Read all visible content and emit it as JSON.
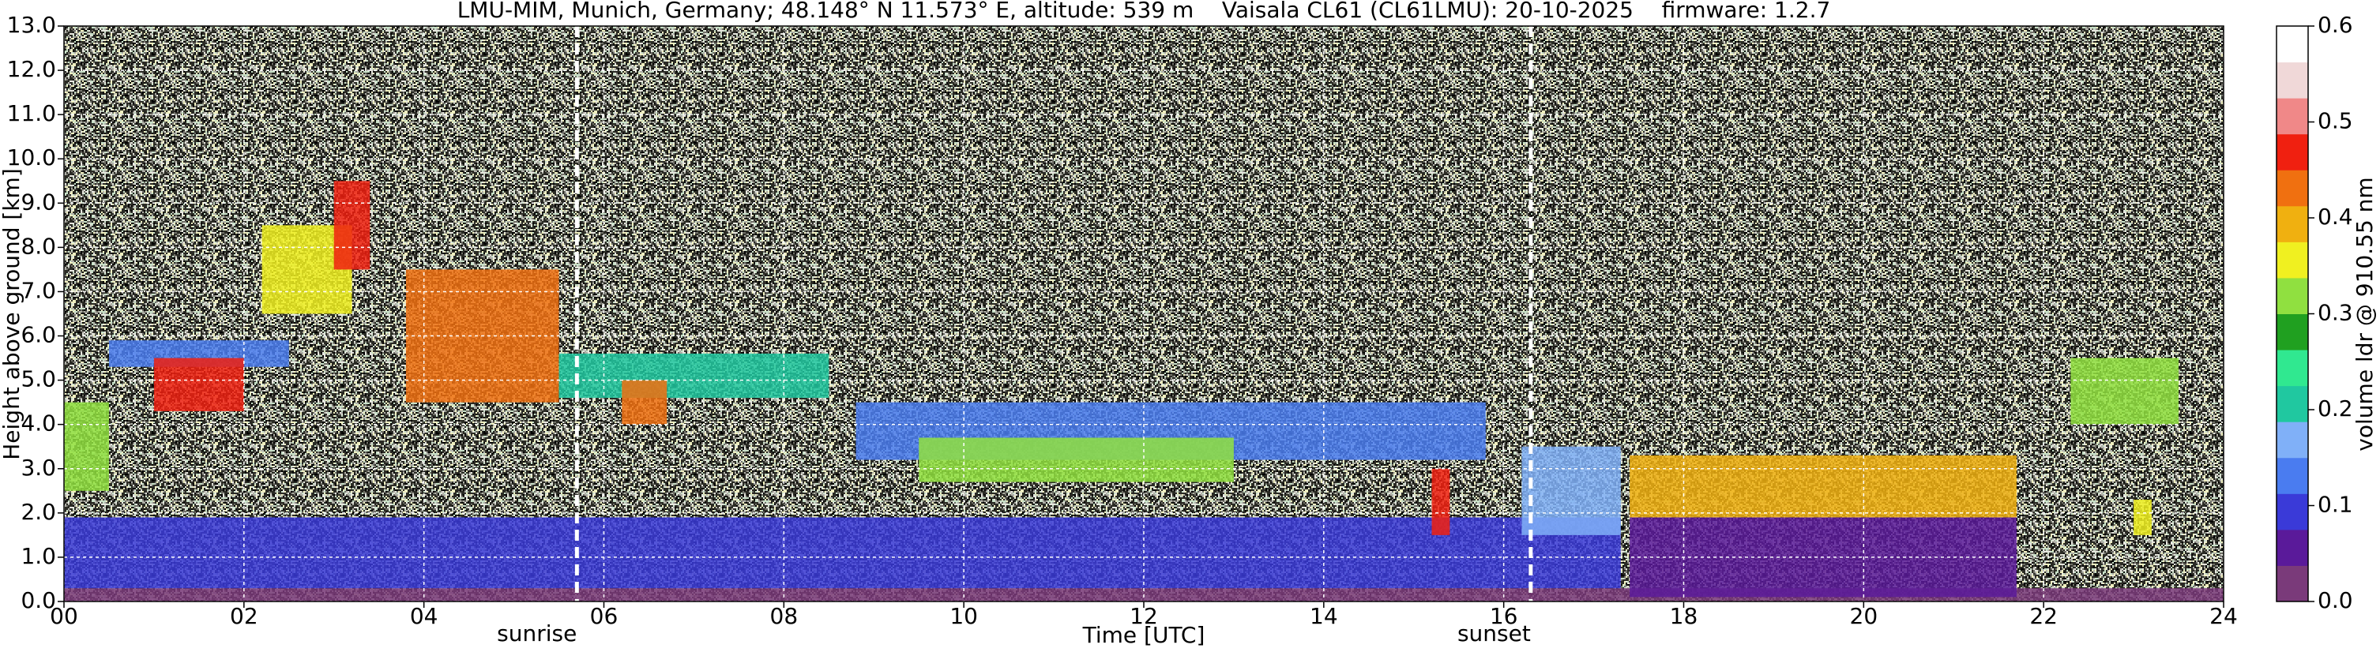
{
  "chart_data": {
    "type": "heatmap",
    "title": "LMU-MIM, Munich, Germany; 48.148° N 11.573° E, altitude: 539 m    Vaisala CL61 (CL61LMU): 20-10-2025    firmware: 1.2.7",
    "xlabel": "Time [UTC]",
    "ylabel": "Height above ground [km]",
    "colorbar_label": "volume ldr @ 910.55 nm",
    "xlim": [
      0,
      24
    ],
    "xticks": [
      {
        "value": 0,
        "label": "00"
      },
      {
        "value": 2,
        "label": "02"
      },
      {
        "value": 4,
        "label": "04"
      },
      {
        "value": 6,
        "label": "06"
      },
      {
        "value": 8,
        "label": "08"
      },
      10,
      12,
      14,
      16,
      18,
      20,
      22,
      24
    ],
    "ylim": [
      0,
      13
    ],
    "yticks": [
      {
        "value": 0,
        "label": "0.0"
      },
      {
        "value": 1,
        "label": "1.0"
      },
      {
        "value": 2,
        "label": "2.0"
      },
      {
        "value": 3,
        "label": "3.0"
      },
      {
        "value": 4,
        "label": "4.0"
      },
      {
        "value": 5,
        "label": "5.0"
      },
      {
        "value": 6,
        "label": "6.0"
      },
      {
        "value": 7,
        "label": "7.0"
      },
      {
        "value": 8,
        "label": "8.0"
      },
      {
        "value": 9,
        "label": "9.0"
      },
      {
        "value": 10,
        "label": "10.0"
      },
      {
        "value": 11,
        "label": "11.0"
      },
      {
        "value": 12,
        "label": "12.0"
      },
      {
        "value": 13,
        "label": "13.0"
      }
    ],
    "clim": [
      0,
      0.6
    ],
    "cticks": [
      {
        "value": 0,
        "label": "0.0"
      },
      0.1,
      0.2,
      0.3,
      0.4,
      0.5,
      0.6
    ],
    "colormap": [
      "#7a3a7a",
      "#5a1a9a",
      "#3a3ad8",
      "#4a7cf0",
      "#80b0f8",
      "#20c8a0",
      "#30e890",
      "#20a020",
      "#90e040",
      "#f0f020",
      "#f0b010",
      "#f07010",
      "#f02010",
      "#f08888",
      "#f0d8d8",
      "#ffffff"
    ],
    "grid": true,
    "annotations": [
      {
        "x": 5.7,
        "text": "sunrise"
      },
      {
        "x": 16.3,
        "text": "sunset"
      }
    ],
    "layers": [
      {
        "x": [
          0,
          24
        ],
        "y": [
          0,
          0.3
        ],
        "ldr": 0.02
      },
      {
        "x": [
          0,
          17.3
        ],
        "y": [
          0.3,
          1.9
        ],
        "ldr": 0.09
      },
      {
        "x": [
          17.4,
          21.7
        ],
        "y": [
          0.1,
          1.9
        ],
        "ldr": 0.06
      },
      {
        "x": [
          0,
          0.5
        ],
        "y": [
          2.5,
          4.5
        ],
        "ldr": 0.3
      },
      {
        "x": [
          0.5,
          2.5
        ],
        "y": [
          5.3,
          5.9
        ],
        "ldr": 0.12
      },
      {
        "x": [
          1,
          2
        ],
        "y": [
          4.3,
          5.5
        ],
        "ldr": 0.46
      },
      {
        "x": [
          2.2,
          3.2
        ],
        "y": [
          6.5,
          8.5
        ],
        "ldr": 0.36
      },
      {
        "x": [
          3,
          3.4
        ],
        "y": [
          7.5,
          9.5
        ],
        "ldr": 0.47
      },
      {
        "x": [
          3.8,
          5.5
        ],
        "y": [
          4.5,
          7.5
        ],
        "ldr": 0.43
      },
      {
        "x": [
          5.5,
          8.5
        ],
        "y": [
          4.6,
          5.6
        ],
        "ldr": 0.22
      },
      {
        "x": [
          6.2,
          6.7
        ],
        "y": [
          4,
          5
        ],
        "ldr": 0.42
      },
      {
        "x": [
          8.8,
          15.8
        ],
        "y": [
          3.2,
          4.5
        ],
        "ldr": 0.13
      },
      {
        "x": [
          9.5,
          13
        ],
        "y": [
          2.7,
          3.7
        ],
        "ldr": 0.3
      },
      {
        "x": [
          15.2,
          15.4
        ],
        "y": [
          1.5,
          3
        ],
        "ldr": 0.46
      },
      {
        "x": [
          16.2,
          17.3
        ],
        "y": [
          1.5,
          3.5
        ],
        "ldr": 0.17
      },
      {
        "x": [
          17.4,
          21.7
        ],
        "y": [
          1.9,
          3.3
        ],
        "ldr": 0.38
      },
      {
        "x": [
          22.3,
          23.5
        ],
        "y": [
          4,
          5.5
        ],
        "ldr": 0.3
      },
      {
        "x": [
          23,
          23.2
        ],
        "y": [
          1.5,
          2.3
        ],
        "ldr": 0.35
      }
    ]
  }
}
